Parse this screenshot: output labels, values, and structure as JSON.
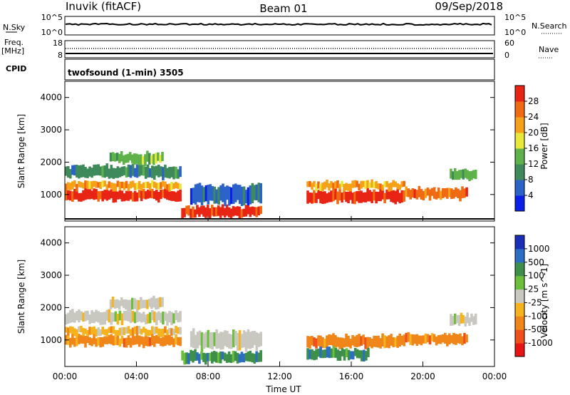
{
  "header": {
    "station": "Inuvik (fitACF)",
    "beam": "Beam 01",
    "date": "09/Sep/2018"
  },
  "strip_labels": {
    "nsky": "N.Sky",
    "nsky_ticks": [
      "10^5",
      "10^0"
    ],
    "nsearch": "N.Search",
    "nsearch_ticks": [
      "10^5",
      "10^0"
    ],
    "freq": "Freq.",
    "freq_unit": "[MHz]",
    "freq_ticks": [
      "18",
      "8"
    ],
    "nave": "Nave",
    "nave_ticks": [
      "60",
      "0"
    ],
    "cpid": "CPID",
    "cpid_text": "twofsound (1-min) 3505"
  },
  "colors": {
    "power": [
      "#0a1fe8",
      "#2b63c8",
      "#3f8a5a",
      "#5fb14a",
      "#e8e83a",
      "#f5a21a",
      "#f06a12",
      "#e82414"
    ],
    "velocity": [
      "#e81414",
      "#f0501a",
      "#f0861a",
      "#f5b41e",
      "#c8c8c0",
      "#6cbf3a",
      "#3d8f4a",
      "#2b6ec4",
      "#1a2fb8"
    ]
  },
  "chart_data": [
    {
      "type": "heatmap",
      "name": "power",
      "xlabel": "",
      "ylabel": "Slant Range [km]",
      "xlim": [
        0,
        24
      ],
      "ylim": [
        180,
        4500
      ],
      "yticks": [
        "1000",
        "2000",
        "3000",
        "4000"
      ],
      "xticks": [
        "00:00",
        "04:00",
        "08:00",
        "12:00",
        "16:00",
        "20:00",
        "00:00"
      ],
      "colorbar": {
        "label": "Power [dB]",
        "ticks": [
          "4",
          "8",
          "12",
          "16",
          "20",
          "24",
          "28"
        ],
        "range": [
          0,
          32
        ]
      },
      "bands": [
        {
          "x": [
            0,
            6.5
          ],
          "y": [
            800,
            1150
          ],
          "level": 7
        },
        {
          "x": [
            0,
            6.5
          ],
          "y": [
            1150,
            1400
          ],
          "level": 5
        },
        {
          "x": [
            0,
            6.5
          ],
          "y": [
            1500,
            1900
          ],
          "level": 2
        },
        {
          "x": [
            2.5,
            5.5
          ],
          "y": [
            1950,
            2300
          ],
          "level": 3
        },
        {
          "x": [
            6.5,
            11
          ],
          "y": [
            300,
            650
          ],
          "level": 7
        },
        {
          "x": [
            7,
            11
          ],
          "y": [
            700,
            1300
          ],
          "level": 1
        },
        {
          "x": [
            13.5,
            19
          ],
          "y": [
            750,
            1150
          ],
          "level": 7
        },
        {
          "x": [
            13.5,
            19
          ],
          "y": [
            1150,
            1400
          ],
          "level": 5
        },
        {
          "x": [
            19,
            22.5
          ],
          "y": [
            850,
            1200
          ],
          "level": 6
        },
        {
          "x": [
            21.5,
            23
          ],
          "y": [
            1450,
            1800
          ],
          "level": 3
        }
      ]
    },
    {
      "type": "heatmap",
      "name": "velocity",
      "xlabel": "Time UT",
      "ylabel": "Slant Range [km]",
      "xlim": [
        0,
        24
      ],
      "ylim": [
        180,
        4500
      ],
      "yticks": [
        "1000",
        "2000",
        "3000",
        "4000"
      ],
      "xticks": [
        "00:00",
        "04:00",
        "08:00",
        "12:00",
        "16:00",
        "20:00",
        "00:00"
      ],
      "colorbar": {
        "label": "Velocity [m s^-1]",
        "ticks": [
          "1000",
          "500",
          "100",
          "25",
          "-25",
          "-100",
          "-500",
          "-1000"
        ]
      },
      "bands": [
        {
          "x": [
            0,
            6.5
          ],
          "y": [
            800,
            1150
          ],
          "level": 2
        },
        {
          "x": [
            0,
            6.5
          ],
          "y": [
            1150,
            1400
          ],
          "level": 3
        },
        {
          "x": [
            0,
            6.5
          ],
          "y": [
            1500,
            1900
          ],
          "level": 4
        },
        {
          "x": [
            2.5,
            5.5
          ],
          "y": [
            1950,
            2300
          ],
          "level": 4
        },
        {
          "x": [
            6.5,
            11
          ],
          "y": [
            300,
            650
          ],
          "level": 6
        },
        {
          "x": [
            7,
            11
          ],
          "y": [
            700,
            1300
          ],
          "level": 4
        },
        {
          "x": [
            13.5,
            19
          ],
          "y": [
            750,
            1150
          ],
          "level": 2
        },
        {
          "x": [
            13.5,
            17
          ],
          "y": [
            400,
            750
          ],
          "level": 6
        },
        {
          "x": [
            19,
            22.5
          ],
          "y": [
            850,
            1200
          ],
          "level": 2
        },
        {
          "x": [
            21.5,
            23
          ],
          "y": [
            1450,
            1800
          ],
          "level": 4
        }
      ]
    }
  ]
}
